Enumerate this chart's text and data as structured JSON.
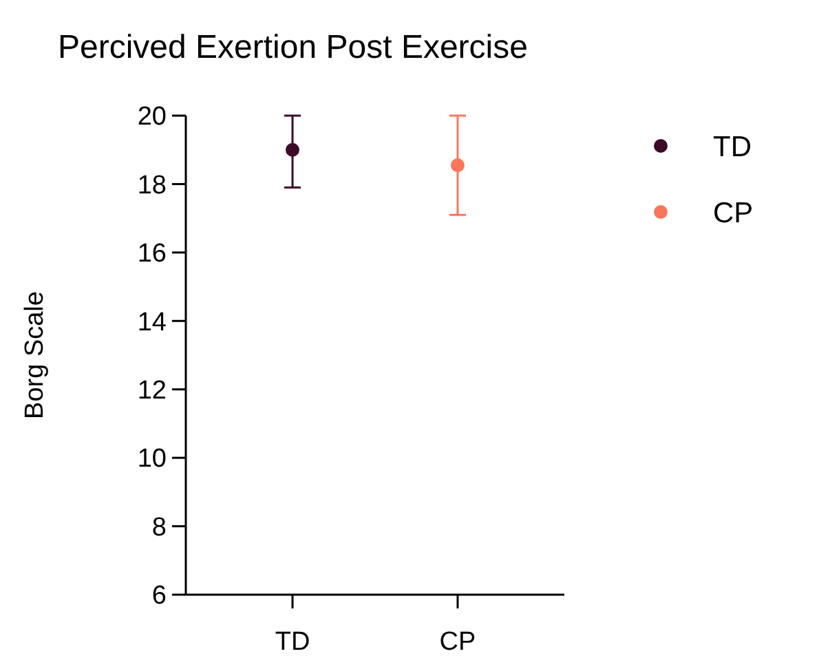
{
  "chart_data": {
    "type": "scatter",
    "title": "Percived Exertion Post Exercise",
    "ylabel": "Borg Scale",
    "categories": [
      "TD",
      "CP"
    ],
    "series": [
      {
        "name": "TD",
        "color": "#3d0a2a",
        "values": [
          19.0,
          null
        ],
        "errors": [
          [
            17.9,
            20.0
          ],
          null
        ]
      },
      {
        "name": "CP",
        "color": "#f8765c",
        "values": [
          null,
          18.55
        ],
        "errors": [
          null,
          [
            17.1,
            20.0
          ]
        ]
      }
    ],
    "ylim": [
      6,
      20
    ],
    "yticks": [
      6,
      8,
      10,
      12,
      14,
      16,
      18,
      20
    ],
    "grid": false,
    "legend": "top right",
    "marker": "circle"
  }
}
